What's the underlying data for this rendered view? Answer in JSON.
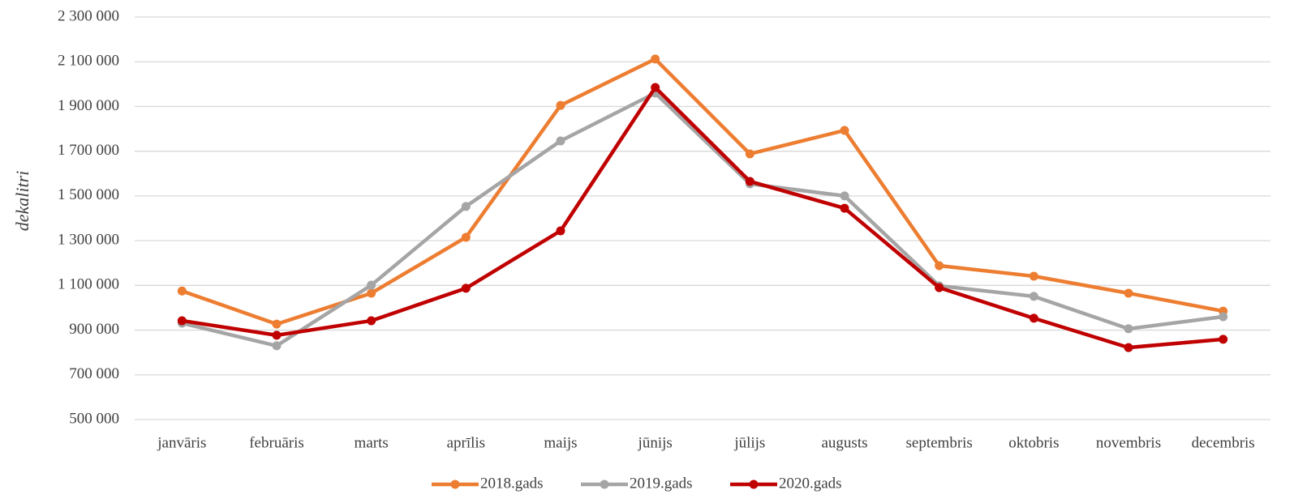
{
  "chart_data": {
    "type": "line",
    "y_label": "dekalitri",
    "categories": [
      "janvāris",
      "februāris",
      "marts",
      "aprīlis",
      "maijs",
      "jūnijs",
      "jūlijs",
      "augusts",
      "septembris",
      "oktobris",
      "novembris",
      "decembris"
    ],
    "series": [
      {
        "name": "2018.gads",
        "color": "#ed7d31",
        "values": [
          1075000,
          927000,
          1065000,
          1315000,
          1905000,
          2112000,
          1688000,
          1793000,
          1188000,
          1141000,
          1065000,
          985000
        ]
      },
      {
        "name": "2019.gads",
        "color": "#a5a5a5",
        "values": [
          931000,
          830000,
          1101000,
          1453000,
          1746000,
          1960000,
          1554000,
          1500000,
          1098000,
          1051000,
          906000,
          960000
        ]
      },
      {
        "name": "2020.gads",
        "color": "#c00000",
        "values": [
          942000,
          877000,
          942000,
          1087000,
          1344000,
          1985000,
          1565000,
          1445000,
          1090000,
          953000,
          822000,
          859000
        ]
      }
    ],
    "ylim": [
      500000,
      2300000
    ],
    "yticks": [
      {
        "value": 500000,
        "label": "500 000"
      },
      {
        "value": 700000,
        "label": "700 000"
      },
      {
        "value": 900000,
        "label": "900 000"
      },
      {
        "value": 1100000,
        "label": "1 100 000"
      },
      {
        "value": 1300000,
        "label": "1 300 000"
      },
      {
        "value": 1500000,
        "label": "1 500 000"
      },
      {
        "value": 1700000,
        "label": "1 700 000"
      },
      {
        "value": 1900000,
        "label": "1 900 000"
      },
      {
        "value": 2100000,
        "label": "2 100 000"
      },
      {
        "value": 2300000,
        "label": "2 300 000"
      }
    ],
    "grid": true,
    "legend": "bottom"
  }
}
